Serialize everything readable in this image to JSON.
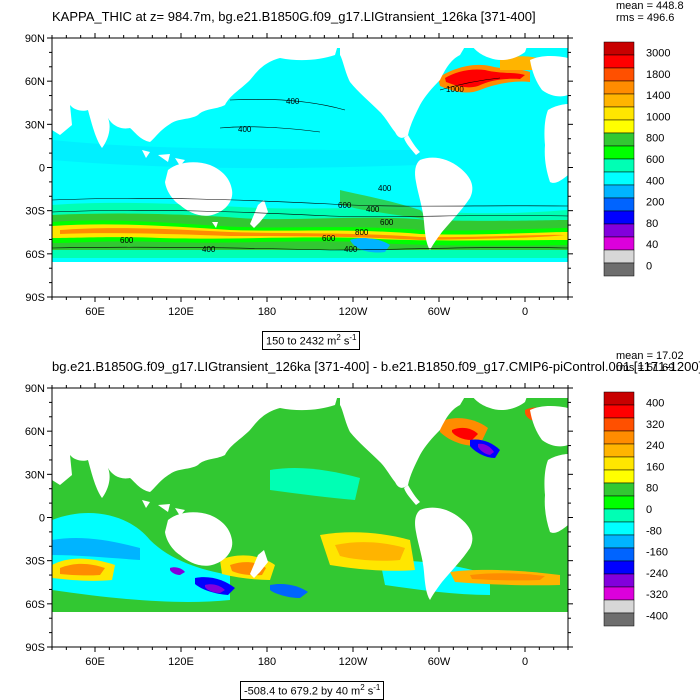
{
  "panel1": {
    "title": "KAPPA_THIC at z= 984.7m, bg.e21.B1850G.f09_g17.LIGtransient_126ka [371-400]",
    "mean": "mean = 448.8",
    "rms": "rms = 496.6",
    "range_text": "150 to 2432 m",
    "units_sup": "2",
    "units_tail": " s",
    "units_sup2": "-1",
    "contour_labels": [
      "400",
      "400",
      "400",
      "400",
      "600",
      "600",
      "600",
      "800",
      "400",
      "400",
      "1000",
      "600"
    ]
  },
  "panel2": {
    "title": "bg.e21.B1850G.f09_g17.LIGtransient_126ka [371-400] - b.e21.B1850.f09_g17.CMIP6-piControl.001 [1171-1200]",
    "mean": "mean = 17.02",
    "rms": "rms = 51.69",
    "range_text": "-508.4 to 679.2 by 40 m",
    "units_sup": "2",
    "units_tail": " s",
    "units_sup2": "-1"
  },
  "axes": {
    "lat_labels": [
      "90N",
      "60N",
      "30N",
      "0",
      "30S",
      "60S",
      "90S"
    ],
    "lon_labels": [
      "60E",
      "120E",
      "180",
      "120W",
      "60W",
      "0"
    ]
  },
  "colorbar1": {
    "labels": [
      "3000",
      "1800",
      "1400",
      "1000",
      "800",
      "600",
      "400",
      "200",
      "80",
      "40",
      "0"
    ],
    "colors": [
      "#c80000",
      "#ff0000",
      "#ff5000",
      "#ff8c00",
      "#ffb400",
      "#ffe600",
      "#ffff00",
      "#32c832",
      "#00ff00",
      "#00ffb4",
      "#00ffff",
      "#00b4ff",
      "#0064ff",
      "#0000ff",
      "#8200dc",
      "#dc00dc",
      "#d7d7d7",
      "#6e6e6e"
    ]
  },
  "colorbar2": {
    "labels": [
      "400",
      "320",
      "240",
      "160",
      "80",
      "0",
      "-80",
      "-160",
      "-240",
      "-320",
      "-400"
    ],
    "colors": [
      "#c80000",
      "#ff0000",
      "#ff5000",
      "#ff8c00",
      "#ffb400",
      "#ffe600",
      "#ffff00",
      "#32c832",
      "#00ff00",
      "#00ffb4",
      "#00ffff",
      "#00b4ff",
      "#0064ff",
      "#0000ff",
      "#8200dc",
      "#dc00dc",
      "#d7d7d7",
      "#6e6e6e"
    ]
  }
}
